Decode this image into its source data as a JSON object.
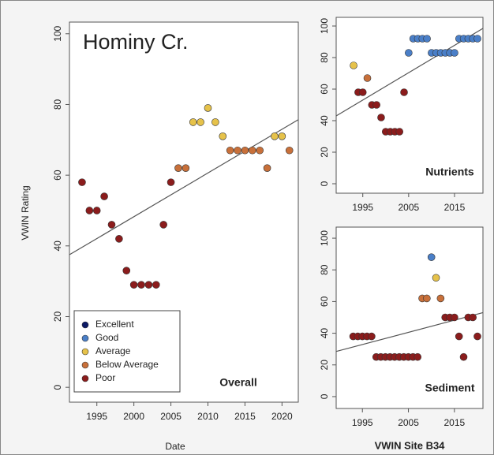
{
  "chart_data": [
    {
      "type": "scatter",
      "annotation": "Hominy Cr.",
      "label": "Overall",
      "xlabel": "Date",
      "ylabel": "VWIN Rating",
      "legend": "lower left",
      "xlim": [
        1991.3,
        2022.2
      ],
      "ylim": [
        -4.2,
        103.3
      ],
      "xticks": [
        1995,
        2000,
        2005,
        2010,
        2015,
        2020
      ],
      "yticks": [
        0,
        20,
        40,
        60,
        80,
        100
      ],
      "trendline": {
        "x": [
          1991.3,
          2022.2
        ],
        "values": [
          37.5,
          75.7
        ]
      },
      "series": [
        {
          "name": "Excellent",
          "color": "#0c1a66",
          "x": [],
          "values": []
        },
        {
          "name": "Good",
          "color": "#4a7fc8",
          "x": [],
          "values": []
        },
        {
          "name": "Average",
          "color": "#e6c24a",
          "x": [
            2008,
            2009,
            2010,
            2011,
            2012,
            2019,
            2020
          ],
          "values": [
            75,
            75,
            79,
            75,
            71,
            71,
            71
          ]
        },
        {
          "name": "Below Average",
          "color": "#c8703a",
          "x": [
            2006,
            2007,
            2013,
            2014,
            2015,
            2016,
            2017,
            2018,
            2021
          ],
          "values": [
            62,
            62,
            67,
            67,
            67,
            67,
            67,
            62,
            67
          ]
        },
        {
          "name": "Poor",
          "color": "#8b1c1c",
          "x": [
            1993,
            1994,
            1995,
            1996,
            1997,
            1998,
            1999,
            2000,
            2001,
            2002,
            2003,
            2004,
            2005
          ],
          "values": [
            58,
            50,
            50,
            54,
            46,
            42,
            33,
            29,
            29,
            29,
            29,
            46,
            58
          ]
        }
      ]
    },
    {
      "type": "scatter",
      "label": "Nutrients",
      "xlim": [
        1989.2,
        2021.2
      ],
      "ylim": [
        -6,
        105.5
      ],
      "xticks": [
        1995,
        2005,
        2015
      ],
      "yticks": [
        0,
        20,
        40,
        60,
        80,
        100
      ],
      "trendline": {
        "x": [
          1989.2,
          2021.2
        ],
        "values": [
          43,
          98.5
        ]
      },
      "series": [
        {
          "color": "#4a7fc8",
          "x": [
            2005,
            2006,
            2007,
            2008,
            2009,
            2010,
            2011,
            2012,
            2013,
            2014,
            2015,
            2016,
            2017,
            2018,
            2019,
            2020
          ],
          "values": [
            83,
            92,
            92,
            92,
            92,
            83,
            83,
            83,
            83,
            83,
            83,
            92,
            92,
            92,
            92,
            92
          ]
        },
        {
          "color": "#e6c24a",
          "x": [
            1993
          ],
          "values": [
            75
          ]
        },
        {
          "color": "#c8703a",
          "x": [
            1996
          ],
          "values": [
            67
          ]
        },
        {
          "color": "#8b1c1c",
          "x": [
            1994,
            1995,
            1997,
            1998,
            1999,
            2000,
            2001,
            2002,
            2003,
            2004
          ],
          "values": [
            58,
            58,
            50,
            50,
            42,
            33,
            33,
            33,
            33,
            58
          ]
        }
      ]
    },
    {
      "type": "scatter",
      "label": "Sediment",
      "xlabel": "VWIN Site B34",
      "xlim": [
        1989.3,
        2021.2
      ],
      "ylim": [
        -7.5,
        107
      ],
      "xticks": [
        1995,
        2005,
        2015
      ],
      "yticks": [
        0,
        20,
        40,
        60,
        80,
        100
      ],
      "trendline": {
        "x": [
          1989.3,
          2021.2
        ],
        "values": [
          28.5,
          53
        ]
      },
      "series": [
        {
          "color": "#4a7fc8",
          "x": [
            2010
          ],
          "values": [
            88
          ]
        },
        {
          "color": "#e6c24a",
          "x": [
            2011
          ],
          "values": [
            75
          ]
        },
        {
          "color": "#c8703a",
          "x": [
            2008,
            2009,
            2012
          ],
          "values": [
            62,
            62,
            62
          ]
        },
        {
          "color": "#8b1c1c",
          "x": [
            1993,
            1994,
            1995,
            1996,
            1997,
            1998,
            1999,
            2000,
            2001,
            2002,
            2003,
            2004,
            2005,
            2006,
            2007,
            2013,
            2014,
            2015,
            2016,
            2017,
            2018,
            2019,
            2020
          ],
          "values": [
            38,
            38,
            38,
            38,
            38,
            25,
            25,
            25,
            25,
            25,
            25,
            25,
            25,
            25,
            25,
            50,
            50,
            50,
            38,
            25,
            50,
            50,
            38
          ]
        }
      ]
    }
  ]
}
